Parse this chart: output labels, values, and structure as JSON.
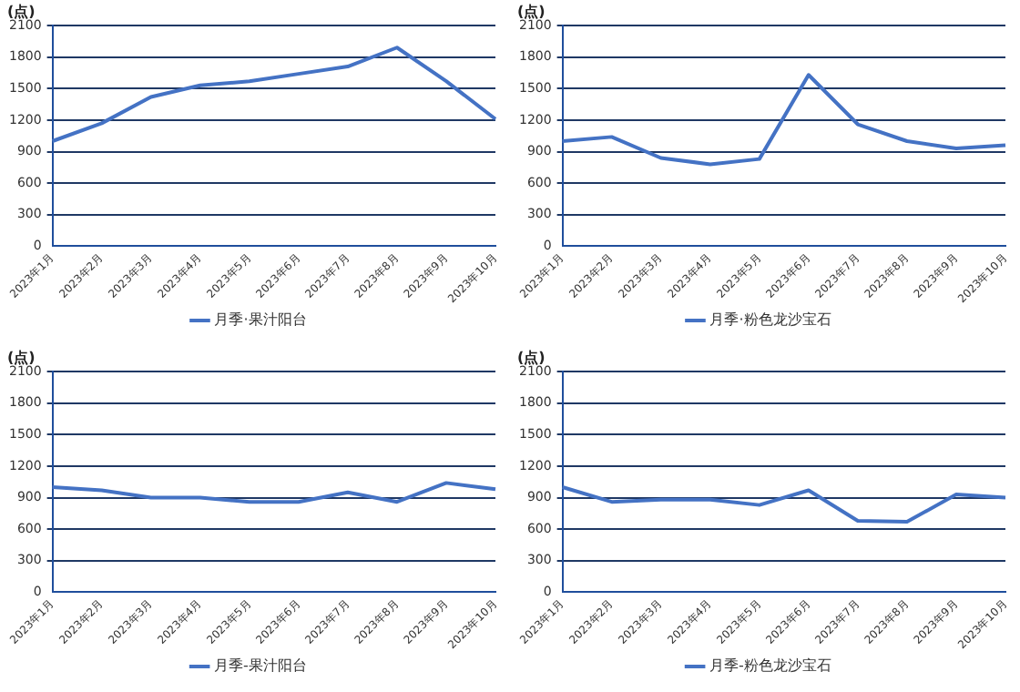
{
  "chart_data": [
    {
      "type": "line",
      "ylabel": "(点)",
      "categories": [
        "2023年1月",
        "2023年2月",
        "2023年3月",
        "2023年4月",
        "2023年5月",
        "2023年6月",
        "2023年7月",
        "2023年8月",
        "2023年9月",
        "2023年10月"
      ],
      "series": [
        {
          "name": "月季·果汁阳台",
          "color": "#4472c4",
          "values": [
            1000,
            1170,
            1420,
            1530,
            1570,
            1640,
            1710,
            1890,
            1570,
            1210
          ]
        }
      ],
      "ylim": [
        0,
        2100
      ],
      "yticks": [
        0,
        300,
        600,
        900,
        1200,
        1500,
        1800,
        2100
      ],
      "grid": "y",
      "legend": "bottom",
      "marker": "none"
    },
    {
      "type": "line",
      "ylabel": "(点)",
      "categories": [
        "2023年1月",
        "2023年2月",
        "2023年3月",
        "2023年4月",
        "2023年5月",
        "2023年6月",
        "2023年7月",
        "2023年8月",
        "2023年9月",
        "2023年10月"
      ],
      "series": [
        {
          "name": "月季·粉色龙沙宝石",
          "color": "#4472c4",
          "values": [
            1000,
            1040,
            840,
            780,
            830,
            1630,
            1160,
            1000,
            930,
            960
          ]
        }
      ],
      "ylim": [
        0,
        2100
      ],
      "yticks": [
        0,
        300,
        600,
        900,
        1200,
        1500,
        1800,
        2100
      ],
      "grid": "y",
      "legend": "bottom",
      "marker": "none"
    },
    {
      "type": "line",
      "ylabel": "(点)",
      "categories": [
        "2023年1月",
        "2023年2月",
        "2023年3月",
        "2023年4月",
        "2023年5月",
        "2023年6月",
        "2023年7月",
        "2023年8月",
        "2023年9月",
        "2023年10月"
      ],
      "series": [
        {
          "name": "月季-果汁阳台",
          "color": "#4472c4",
          "values": [
            1000,
            970,
            900,
            900,
            860,
            860,
            950,
            860,
            1040,
            980
          ]
        }
      ],
      "ylim": [
        0,
        2100
      ],
      "yticks": [
        0,
        300,
        600,
        900,
        1200,
        1500,
        1800,
        2100
      ],
      "grid": "y",
      "legend": "bottom",
      "marker": "none"
    },
    {
      "type": "line",
      "ylabel": "(点)",
      "categories": [
        "2023年1月",
        "2023年2月",
        "2023年3月",
        "2023年4月",
        "2023年5月",
        "2023年6月",
        "2023年7月",
        "2023年8月",
        "2023年9月",
        "2023年10月"
      ],
      "series": [
        {
          "name": "月季-粉色龙沙宝石",
          "color": "#4472c4",
          "values": [
            1000,
            860,
            880,
            880,
            830,
            970,
            680,
            670,
            930,
            900
          ]
        }
      ],
      "ylim": [
        0,
        2100
      ],
      "yticks": [
        0,
        300,
        600,
        900,
        1200,
        1500,
        1800,
        2100
      ],
      "grid": "y",
      "legend": "bottom",
      "marker": "none"
    }
  ]
}
